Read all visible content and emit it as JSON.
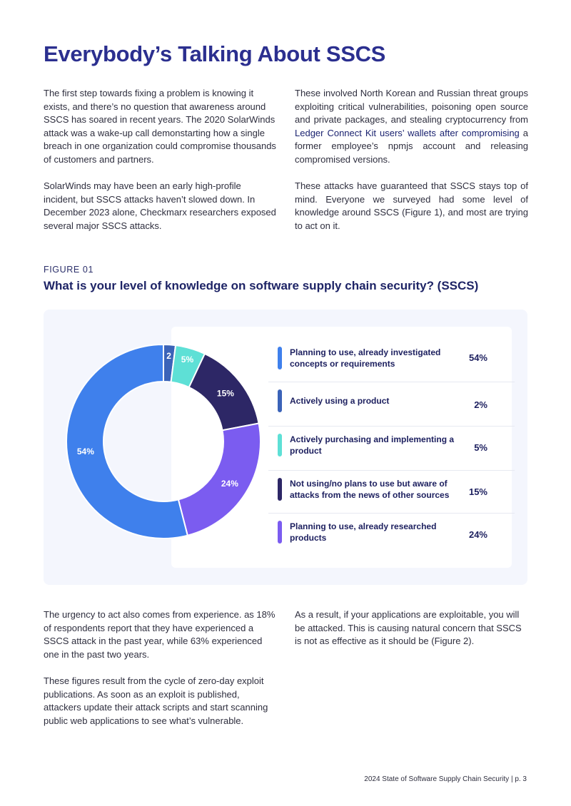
{
  "page": {
    "title": "Everybody’s Talking About SSCS",
    "intro_left": [
      "The first step towards fixing a problem is knowing it exists, and there’s no question that awareness around SSCS has soared in recent years. The 2020 SolarWinds attack was a wake-up call demonstarting how a single breach in one organization could  compromise thousands of customers and partners.",
      "SolarWinds may have been an early high-profile incident, but SSCS attacks haven’t slowed down. In December 2023 alone, Checkmarx researchers exposed several major SSCS attacks."
    ],
    "intro_right_p1_before": "These involved North Korean and Russian threat groups exploiting critical vulnerabilities, poisoning open source and private packages, and stealing cryptocurrency from ",
    "intro_right_p1_link": "Ledger Connect Kit users’ wallets after compromising",
    "intro_right_p1_after": " a former employee’s npmjs account and releasing compromised versions.",
    "intro_right_p2": "These attacks have guaranteed that SSCS stays top of mind. Everyone we surveyed had some level of knowledge around SSCS (Figure 1), and most are trying to act on it.",
    "outro_left": [
      "The urgency to act also comes from experience. as 18% of respondents report that they have experienced a SSCS attack in the past year, while 63% experienced one in the past two years.",
      "These figures result from the cycle of zero-day exploit publications. As soon as an exploit is published, attackers update their attack scripts and start scanning public web applications to see what’s vulnerable."
    ],
    "outro_right": [
      "As a result, if your applications are exploitable, you will be attacked. This is causing natural concern that SSCS is not as effective as it should be (Figure 2)."
    ],
    "footer": "2024 State of Software Supply Chain Security |  p. 3"
  },
  "figure": {
    "label": "FIGURE 01",
    "title": "What is your level of knowledge on software supply chain security? (SSCS)"
  },
  "chart_data": {
    "type": "pie",
    "variant": "donut",
    "title": "What is your level of knowledge on software supply chain security? (SSCS)",
    "legend_position": "right",
    "slices": [
      {
        "label": "Actively using a product",
        "value": 2,
        "display": "2",
        "legend_value": "2%",
        "color": "#3b63b8"
      },
      {
        "label": "Actively purchasing and implementing a product",
        "value": 5,
        "display": "5%",
        "legend_value": "5%",
        "color": "#5ee0d6"
      },
      {
        "label": "Not using/no plans to use but aware of attacks from the news of other sources",
        "value": 15,
        "display": "15%",
        "legend_value": "15%",
        "color": "#2d2766"
      },
      {
        "label": "Planning to use, already researched products",
        "value": 24,
        "display": "24%",
        "legend_value": "24%",
        "color": "#7b5cf0"
      },
      {
        "label": "Planning to use, already investigated concepts or requirements",
        "value": 54,
        "display": "54%",
        "legend_value": "54%",
        "color": "#3f80ec"
      }
    ],
    "legend_order": [
      4,
      0,
      1,
      2,
      3
    ]
  }
}
